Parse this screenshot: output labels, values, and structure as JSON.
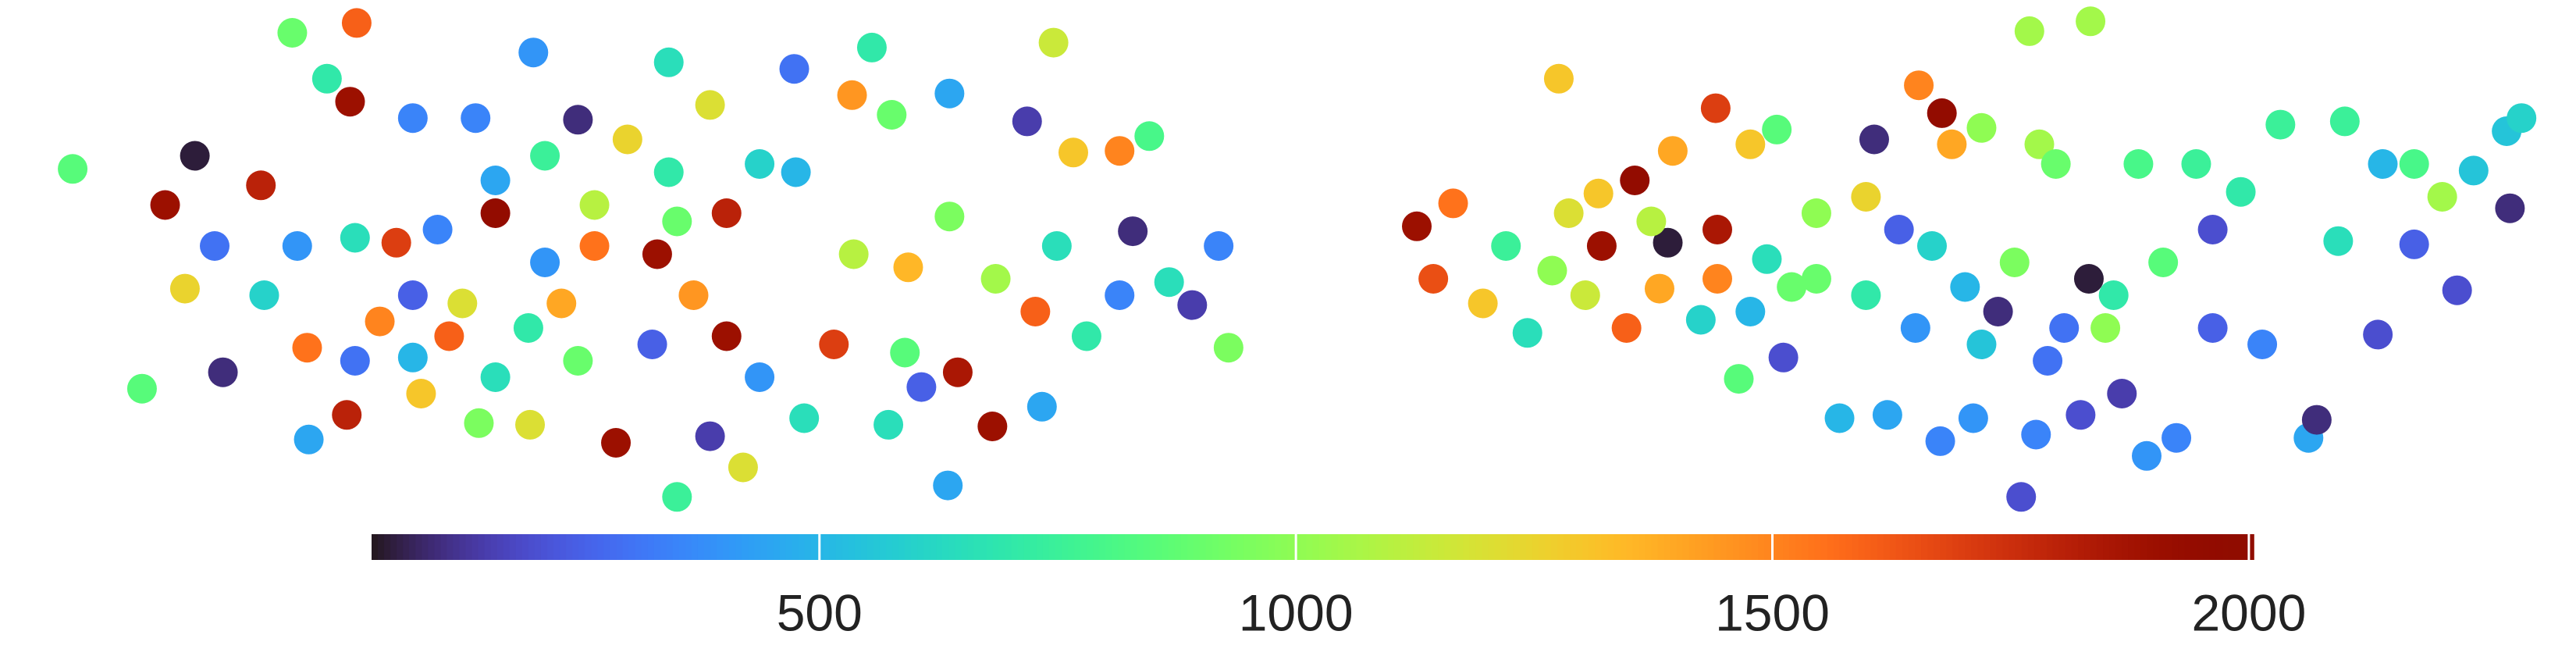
{
  "chart_data": {
    "type": "scatter",
    "colormap": "turbo",
    "grid": false,
    "xlim": [
      0,
      1560
    ],
    "ylim": [
      0,
      400
    ],
    "x": [
      44,
      86,
      100,
      112,
      118,
      135,
      158,
      177,
      216,
      212,
      198,
      187,
      210,
      250,
      288,
      323,
      350,
      405,
      430,
      481,
      528,
      516,
      540,
      575,
      638,
      622,
      650,
      678,
      696,
      686,
      738,
      744,
      722,
      708,
      627,
      601,
      580,
      574,
      631,
      558,
      538,
      410,
      373,
      450,
      430,
      321,
      290,
      255,
      272,
      300,
      330,
      360,
      398,
      440,
      505,
      548,
      550,
      575,
      603,
      517,
      482,
      460,
      405,
      380,
      330,
      300,
      265,
      240,
      215,
      180,
      160,
      130,
      230,
      250,
      186,
      215,
      350,
      395,
      460,
      487,
      420,
      340,
      300,
      320,
      280,
      250,
      440,
      360,
      410,
      640,
      658,
      678,
      858,
      868,
      880,
      898,
      912,
      925,
      944,
      968,
      990,
      1013,
      1039,
      1060,
      1076,
      1135,
      1162,
      1176,
      1182,
      1200,
      1229,
      1266,
      1235,
      1245,
      1295,
      1330,
      1357,
      1381,
      1420,
      1443,
      1462,
      1479,
      1498,
      1518,
      1527,
      1520,
      1488,
      1462,
      1440,
      1416,
      1398,
      1403,
      1370,
      1340,
      1318,
      1300,
      1285,
      1260,
      1224,
      1233,
      1210,
      1195,
      1175,
      1143,
      1114,
      1080,
      1053,
      1030,
      1005,
      985,
      960,
      940,
      1010,
      1040,
      1070,
      1100,
      1130,
      1160,
      1190,
      1220,
      1250,
      1280,
      1310,
      1340,
      1100,
      1130,
      1150,
      1170,
      1060,
      1000,
      970,
      950,
      1085,
      1040,
      1265,
      1200,
      1240,
      1275
    ],
    "y": [
      297,
      163,
      275,
      224,
      305,
      173,
      287,
      380,
      386,
      338,
      352,
      132,
      147,
      328,
      328,
      368,
      327,
      362,
      336,
      358,
      371,
      342,
      330,
      343,
      374,
      326,
      307,
      308,
      317,
      259,
      250,
      188,
      214,
      228,
      210,
      140,
      173,
      104,
      152,
      164,
      141,
      97,
      130,
      115,
      134,
      141,
      142,
      160,
      195,
      270,
      240,
      250,
      245,
      195,
      190,
      185,
      237,
      268,
      230,
      245,
      295,
      300,
      295,
      315,
      305,
      290,
      260,
      252,
      255,
      250,
      220,
      250,
      204,
      182,
      188,
      180,
      180,
      190,
      170,
      145,
      220,
      215,
      170,
      200,
      215,
      220,
      270,
      275,
      265,
      250,
      195,
      220,
      262,
      230,
      276,
      215,
      250,
      197,
      352,
      282,
      290,
      308,
      334,
      312,
      321,
      315,
      348,
      331,
      312,
      322,
      381,
      387,
      312,
      300,
      300,
      300,
      283,
      324,
      326,
      300,
      300,
      280,
      296,
      320,
      328,
      273,
      223,
      251,
      196,
      253,
      133,
      144,
      190,
      200,
      133,
      122,
      160,
      147,
      97,
      135,
      210,
      145,
      131,
      147,
      145,
      182,
      169,
      205,
      224,
      200,
      220,
      235,
      252,
      260,
      242,
      230,
      220,
      200,
      225,
      240,
      200,
      220,
      240,
      260,
      270,
      280,
      260,
      250,
      210,
      265,
      250,
      270,
      225,
      230,
      230,
      190,
      180,
      200
    ],
    "c": [
      850,
      850,
      1900,
      1250,
      50,
      100,
      1800,
      900,
      1600,
      1900,
      700,
      450,
      1800,
      350,
      350,
      400,
      100,
      650,
      1200,
      300,
      700,
      1450,
      900,
      450,
      1150,
      150,
      1300,
      1500,
      800,
      100,
      350,
      950,
      150,
      650,
      1600,
      1900,
      1850,
      450,
      450,
      250,
      650,
      750,
      1900,
      1200,
      150,
      1200,
      950,
      1300,
      1600,
      1950,
      400,
      1550,
      1900,
      1900,
      1700,
      850,
      1350,
      950,
      1050,
      1100,
      500,
      600,
      700,
      1250,
      750,
      450,
      350,
      1700,
      650,
      400,
      600,
      300,
      1500,
      500,
      1550,
      300,
      900,
      250,
      400,
      650,
      1450,
      1400,
      650,
      700,
      1200,
      250,
      1800,
      1100,
      900,
      650,
      700,
      350,
      1900,
      1650,
      1550,
      1300,
      750,
      650,
      1300,
      1300,
      1950,
      1400,
      1700,
      1300,
      850,
      100,
      1500,
      1950,
      1400,
      1000,
      1050,
      1050,
      1050,
      900,
      800,
      750,
      700,
      750,
      750,
      500,
      800,
      1050,
      550,
      550,
      600,
      100,
      200,
      250,
      200,
      650,
      450,
      100,
      350,
      250,
      350,
      400,
      150,
      200,
      200,
      350,
      100,
      400,
      350,
      450,
      500,
      200,
      850,
      600,
      1400,
      1600,
      1150,
      1000,
      50,
      1850,
      650,
      900,
      700,
      400,
      500,
      950,
      300,
      700,
      850,
      200,
      1000,
      1250,
      250,
      600,
      500,
      1100,
      1900,
      1200,
      900,
      1500,
      50,
      550,
      300,
      1000
    ],
    "clim": [
      30,
      2005
    ],
    "cticks": [
      500,
      1000,
      1500,
      2000
    ]
  }
}
